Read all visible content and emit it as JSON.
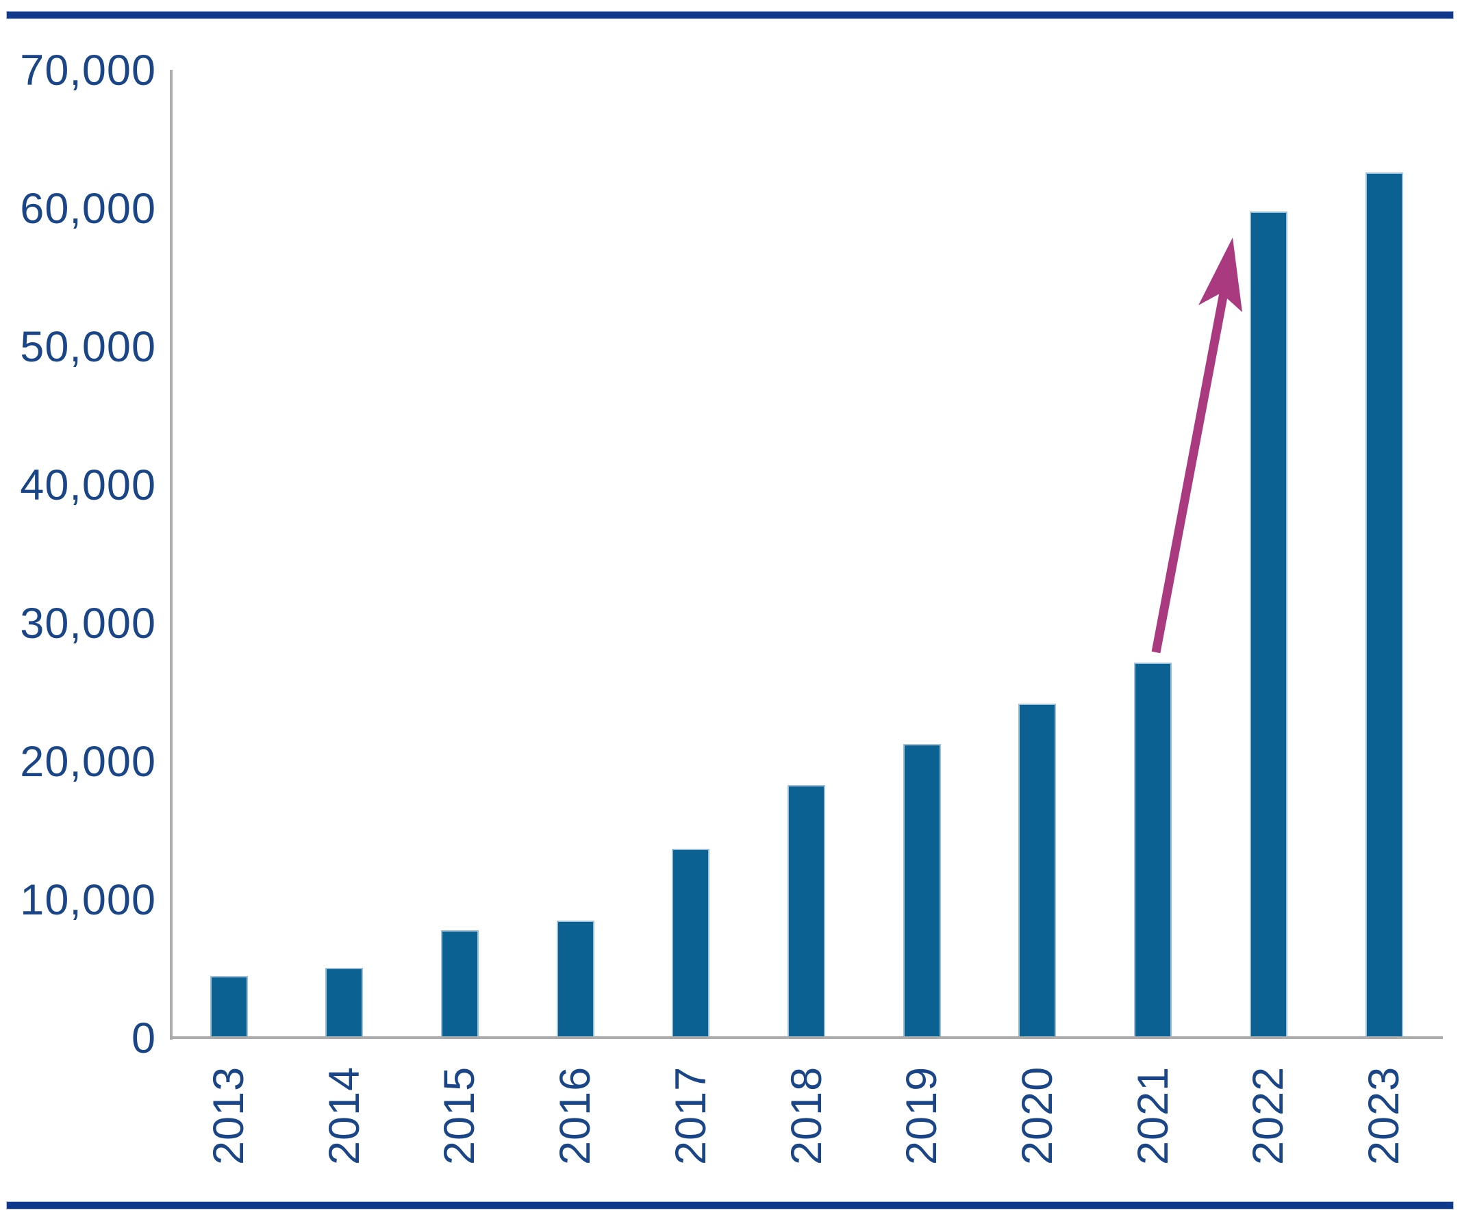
{
  "chart_data": {
    "type": "bar",
    "title": "",
    "xlabel": "",
    "ylabel": "",
    "categories": [
      "2013",
      "2014",
      "2015",
      "2016",
      "2017",
      "2018",
      "2019",
      "2020",
      "2021",
      "2022",
      "2023"
    ],
    "values": [
      4500,
      5100,
      7800,
      8500,
      13700,
      18300,
      21300,
      24200,
      27200,
      59800,
      62600
    ],
    "ylim": [
      0,
      70000
    ],
    "yticks": [
      {
        "v": 0,
        "label": "0"
      },
      {
        "v": 10000,
        "label": "10,000"
      },
      {
        "v": 20000,
        "label": "20,000"
      },
      {
        "v": 30000,
        "label": "30,000"
      },
      {
        "v": 40000,
        "label": "40,000"
      },
      {
        "v": 50000,
        "label": "50,000"
      },
      {
        "v": 60000,
        "label": "60,000"
      },
      {
        "v": 70000,
        "label": "70,000"
      }
    ],
    "grid": false,
    "legend": "none",
    "colors": {
      "bar_fill": "#0B6191",
      "bar_border": "#9CC0DB",
      "axis_line": "#ACACAC",
      "tick_label": "#1A4586",
      "border_rule": "#10398C",
      "arrow": "#A93A80"
    },
    "annotation_arrow": {
      "description": "upward arrow highlighting the jump from the 2021 bar to the 2022 bar",
      "from_category": "2021",
      "to_category": "2022"
    }
  }
}
